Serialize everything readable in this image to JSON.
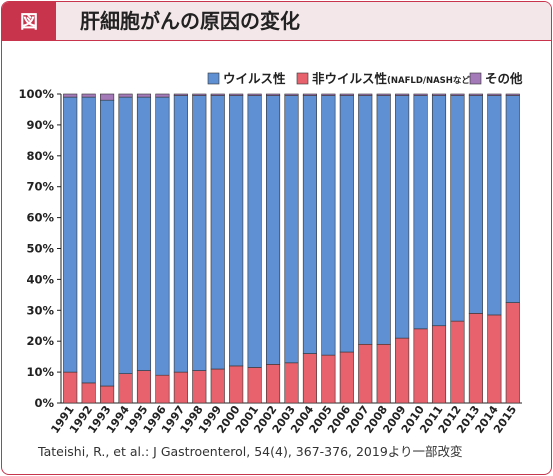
{
  "header": {
    "badge": "図",
    "title": "肝細胞がんの原因の変化"
  },
  "source": "Tateishi, R., et al.: J Gastroenterol, 54(4), 367-376, 2019より一部改変",
  "colors": {
    "viral": "#5f90d3",
    "nonviral": "#e8626e",
    "other": "#a57ab8",
    "accent": "#c9344d"
  },
  "chart_data": {
    "type": "bar",
    "stacked": true,
    "percent": true,
    "categories": [
      "1991",
      "1992",
      "1993",
      "1994",
      "1995",
      "1996",
      "1997",
      "1998",
      "1999",
      "2000",
      "2001",
      "2002",
      "2003",
      "2004",
      "2005",
      "2006",
      "2007",
      "2008",
      "2009",
      "2010",
      "2011",
      "2012",
      "2013",
      "2014",
      "2015"
    ],
    "series": [
      {
        "name": "非ウイルス性",
        "note": "(NAFLD/NASHなど)",
        "color": "#e8626e",
        "values": [
          10,
          6.5,
          5.5,
          9.5,
          10.5,
          9,
          10,
          10.5,
          11,
          12,
          11.5,
          12.5,
          13,
          16,
          15.5,
          16.5,
          19,
          19,
          21,
          24,
          25,
          26.5,
          29,
          28.5,
          32.5
        ]
      },
      {
        "name": "ウイルス性",
        "color": "#5f90d3",
        "values": [
          89,
          92.5,
          92.5,
          89.5,
          88.5,
          90,
          89.5,
          89,
          88.5,
          87.5,
          88,
          87,
          86.5,
          83.5,
          84,
          83,
          80.5,
          80.5,
          78.5,
          75.5,
          74.5,
          73,
          70.5,
          71,
          67
        ]
      },
      {
        "name": "その他",
        "color": "#a57ab8",
        "values": [
          1,
          1,
          2,
          1,
          1,
          1,
          0.5,
          0.5,
          0.5,
          0.5,
          0.5,
          0.5,
          0.5,
          0.5,
          0.5,
          0.5,
          0.5,
          0.5,
          0.5,
          0.5,
          0.5,
          0.5,
          0.5,
          0.5,
          0.5
        ]
      }
    ],
    "yticks": [
      "0%",
      "10%",
      "20%",
      "30%",
      "40%",
      "50%",
      "60%",
      "70%",
      "80%",
      "90%",
      "100%"
    ],
    "ylim": [
      0,
      100
    ],
    "grid": false,
    "legend": "top-right",
    "legend_order": [
      "ウイルス性",
      "非ウイルス性",
      "その他"
    ]
  }
}
